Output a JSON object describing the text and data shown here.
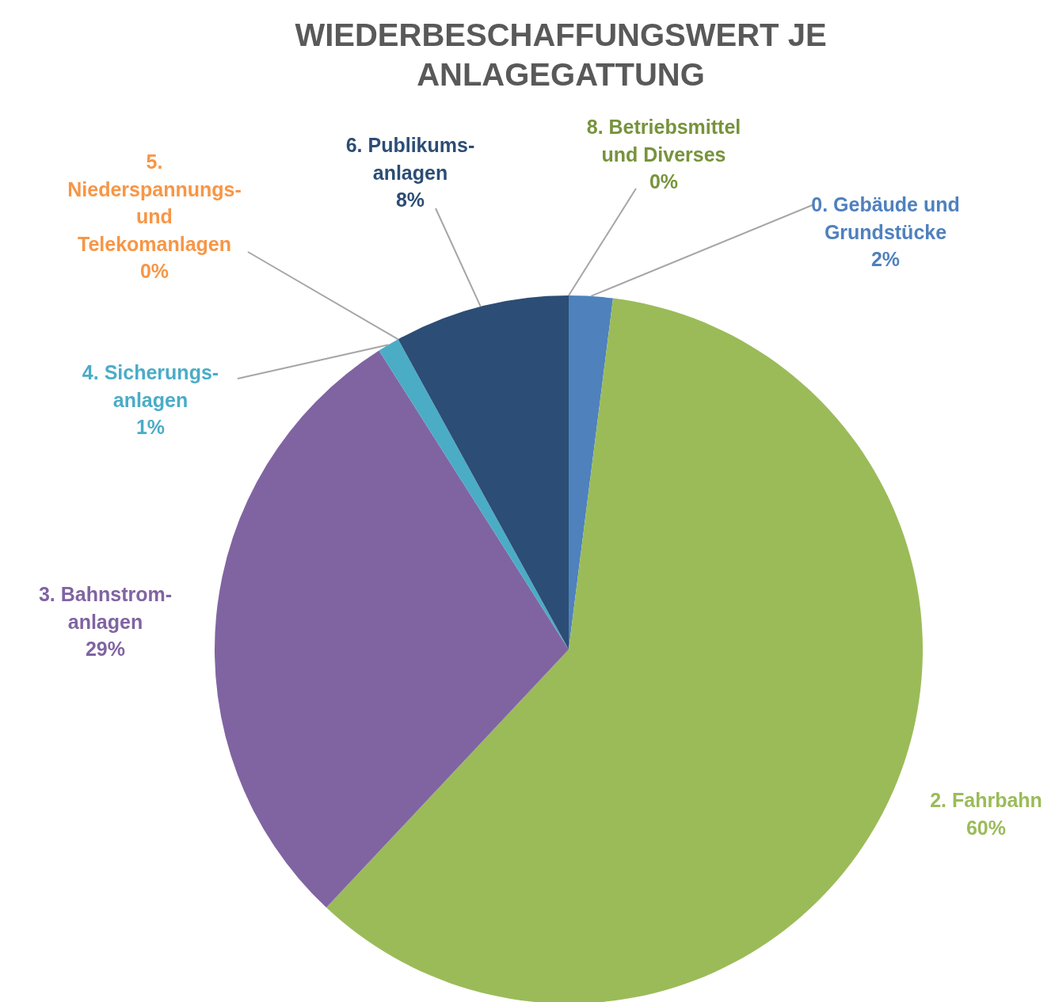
{
  "chart_data": {
    "type": "pie",
    "title": "WIEDERBESCHAFFUNGSWERT JE\nANLAGEGATTUNG",
    "categories": [
      "0. Gebäude und\nGrundstücke",
      "2. Fahrbahn",
      "3. Bahnstrom-\nanlagen",
      "4. Sicherungs-\nanlagen",
      "5.\nNiederspannungs-\nund\nTelekomanlagen",
      "6. Publikums-\nanlagen",
      "8. Betriebsmittel\nund Diverses"
    ],
    "values": [
      2,
      60,
      29,
      1,
      0,
      8,
      0
    ],
    "colors": [
      "#4f81bd",
      "#9bbb59",
      "#8064a2",
      "#4bacc6",
      "#f79646",
      "#2c4d75",
      "#77933c"
    ],
    "value_labels": [
      "2%",
      "60%",
      "29%",
      "1%",
      "0%",
      "8%",
      "0%"
    ]
  }
}
